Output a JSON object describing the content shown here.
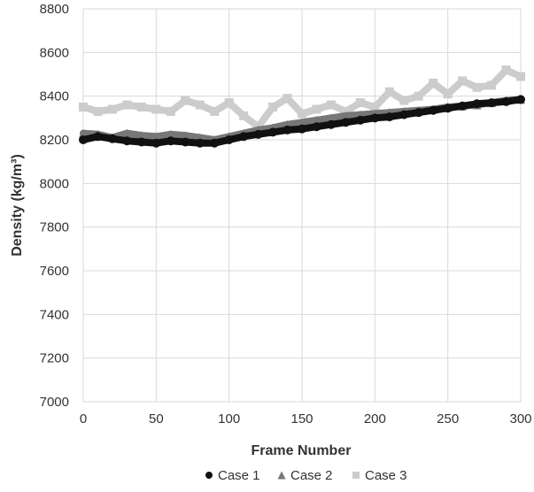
{
  "chart_data": {
    "type": "scatter",
    "title": "",
    "xlabel": "Frame Number",
    "ylabel": "Density (kg/m³)",
    "xlim": [
      0,
      300
    ],
    "ylim": [
      7000,
      8800
    ],
    "xticks": [
      0,
      50,
      100,
      150,
      200,
      250,
      300
    ],
    "yticks": [
      7000,
      7200,
      7400,
      7600,
      7800,
      8000,
      8200,
      8400,
      8600,
      8800
    ],
    "x_tick_labels": [
      "0",
      "50",
      "100",
      "150",
      "200",
      "250",
      "300"
    ],
    "y_tick_labels": [
      "7000",
      "7200",
      "7400",
      "7600",
      "7800",
      "8000",
      "8200",
      "8400",
      "8600",
      "8800"
    ],
    "grid": true,
    "legend_position": "bottom",
    "x": [
      0,
      10,
      20,
      30,
      40,
      50,
      60,
      70,
      80,
      90,
      100,
      110,
      120,
      130,
      140,
      150,
      160,
      170,
      180,
      190,
      200,
      210,
      220,
      230,
      240,
      250,
      260,
      270,
      280,
      290,
      300
    ],
    "series": [
      {
        "name": "Case 1",
        "marker": "circle",
        "color": "#111111",
        "values": [
          8200,
          8215,
          8205,
          8195,
          8190,
          8185,
          8195,
          8190,
          8185,
          8185,
          8200,
          8215,
          8225,
          8235,
          8245,
          8250,
          8260,
          8270,
          8280,
          8290,
          8300,
          8305,
          8315,
          8325,
          8335,
          8345,
          8355,
          8365,
          8370,
          8375,
          8385
        ]
      },
      {
        "name": "Case 2",
        "marker": "triangle",
        "color": "#777777",
        "values": [
          8230,
          8225,
          8210,
          8230,
          8220,
          8215,
          8225,
          8220,
          8210,
          8200,
          8215,
          8230,
          8245,
          8255,
          8270,
          8280,
          8290,
          8300,
          8310,
          8315,
          8320,
          8325,
          8330,
          8335,
          8340,
          8350,
          8355,
          8360,
          8370,
          8380,
          8385
        ]
      },
      {
        "name": "Case 3",
        "marker": "square",
        "color": "#cccccc",
        "values": [
          8350,
          8330,
          8340,
          8360,
          8350,
          8340,
          8330,
          8380,
          8360,
          8330,
          8370,
          8310,
          8260,
          8350,
          8390,
          8320,
          8340,
          8360,
          8330,
          8370,
          8350,
          8420,
          8380,
          8400,
          8460,
          8410,
          8470,
          8440,
          8450,
          8520,
          8490
        ]
      }
    ]
  }
}
